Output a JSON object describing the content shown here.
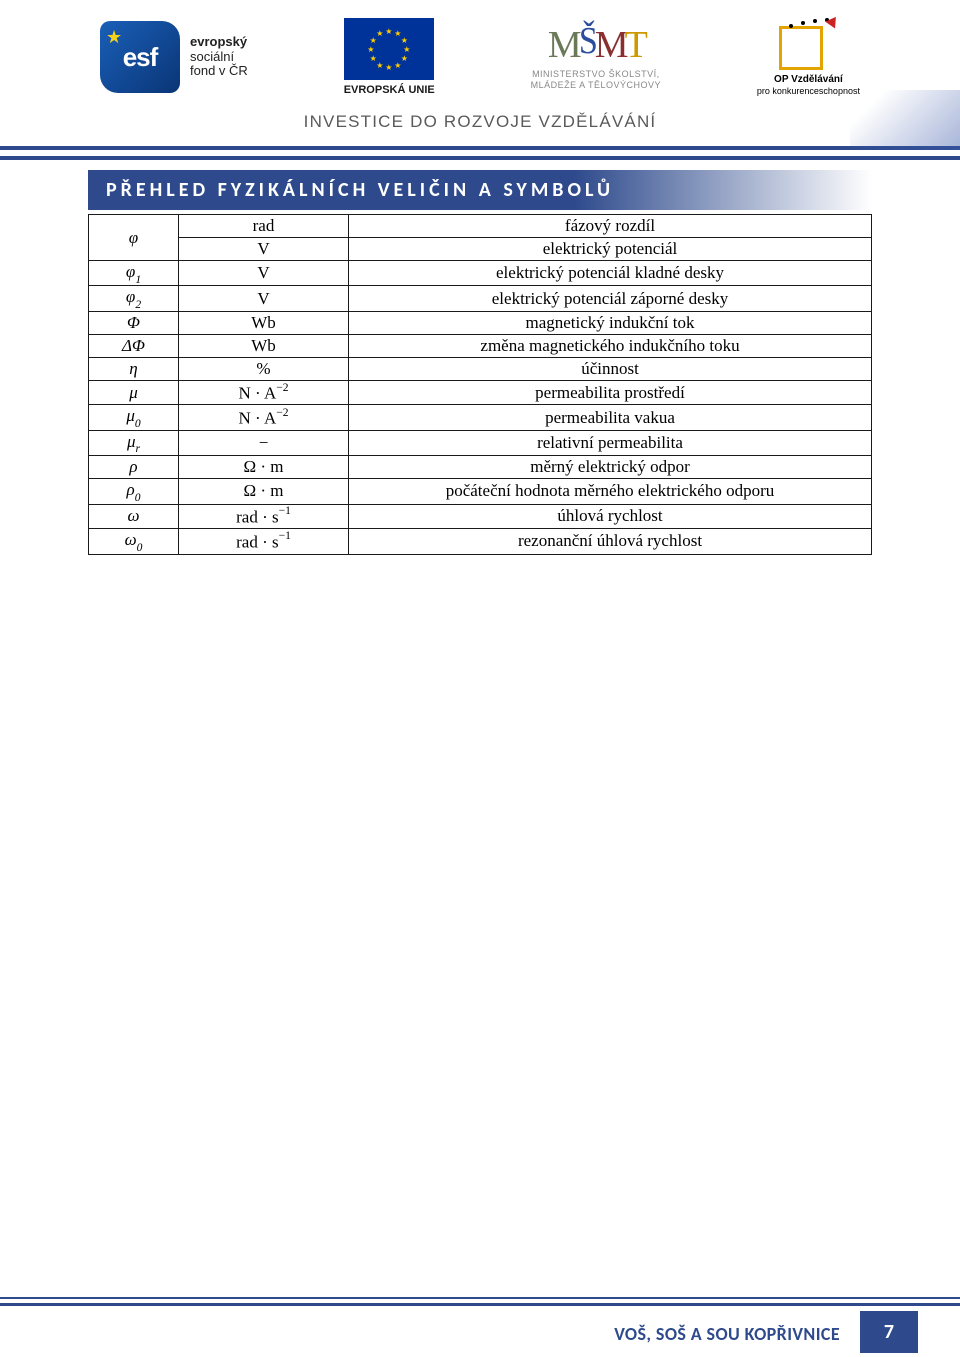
{
  "header": {
    "esf": {
      "badge_text": "esf",
      "label_line1": "evropský",
      "label_line2": "sociální",
      "label_line3": "fond v ČR"
    },
    "eu": {
      "label": "EVROPSKÁ UNIE"
    },
    "msmt": {
      "line1": "MINISTERSTVO ŠKOLSTVÍ,",
      "line2": "MLÁDEŽE A TĚLOVÝCHOVY"
    },
    "opvk": {
      "line1": "OP Vzdělávání",
      "line2": "pro konkurenceschopnost"
    },
    "tagline": "INVESTICE DO ROZVOJE VZDĚLÁVÁNÍ"
  },
  "section_title": "PŘEHLED FYZIKÁLNÍCH VELIČIN A SYMBOLŮ",
  "colors": {
    "brand_blue": "#2e4a8c",
    "table_border": "#1a1a1a",
    "text": "#000000"
  },
  "table": {
    "rows": [
      {
        "symbol_html": "<i>φ</i>",
        "unit_html": "rad",
        "desc": "fázový rozdíl",
        "rowspan_sym": 2,
        "first_of_pair": true
      },
      {
        "symbol_html": "",
        "unit_html": "V",
        "desc": "elektrický potenciál",
        "second_of_pair": true
      },
      {
        "symbol_html": "<i>φ</i><span class=\"sub\">1</span>",
        "unit_html": "V",
        "desc": "elektrický potenciál kladné desky"
      },
      {
        "symbol_html": "<i>φ</i><span class=\"sub\">2</span>",
        "unit_html": "V",
        "desc": "elektrický potenciál záporné desky"
      },
      {
        "symbol_html": "<i>Φ</i>",
        "unit_html": "Wb",
        "desc": "magnetický indukční tok"
      },
      {
        "symbol_html": "Δ<i>Φ</i>",
        "unit_html": "Wb",
        "desc": "změna magnetického indukčního toku"
      },
      {
        "symbol_html": "<i>η</i>",
        "unit_html": "%",
        "desc": "účinnost"
      },
      {
        "symbol_html": "<i>μ</i>",
        "unit_html": "N · A<span class=\"sup\">−2</span>",
        "desc": "permeabilita prostředí"
      },
      {
        "symbol_html": "<i>μ</i><span class=\"sub\">0</span>",
        "unit_html": "N · A<span class=\"sup\">−2</span>",
        "desc": "permeabilita vakua"
      },
      {
        "symbol_html": "<i>μ</i><span class=\"sub\">r</span>",
        "unit_html": "−",
        "desc": "relativní permeabilita"
      },
      {
        "symbol_html": "<i>ρ</i>",
        "unit_html": "Ω · m",
        "desc": "měrný elektrický odpor"
      },
      {
        "symbol_html": "<i>ρ</i><span class=\"sub\">0</span>",
        "unit_html": "Ω · m",
        "desc": "počáteční hodnota měrného elektrického odporu"
      },
      {
        "symbol_html": "<i>ω</i>",
        "unit_html": "rad · s<span class=\"sup\">−1</span>",
        "desc": "úhlová rychlost"
      },
      {
        "symbol_html": "<i>ω</i><span class=\"sub\">0</span>",
        "unit_html": "rad · s<span class=\"sup\">−1</span>",
        "desc": "rezonanční úhlová rychlost"
      }
    ]
  },
  "footer": {
    "school": "VOŠ, SOŠ A SOU KOPŘIVNICE",
    "page": "7"
  }
}
